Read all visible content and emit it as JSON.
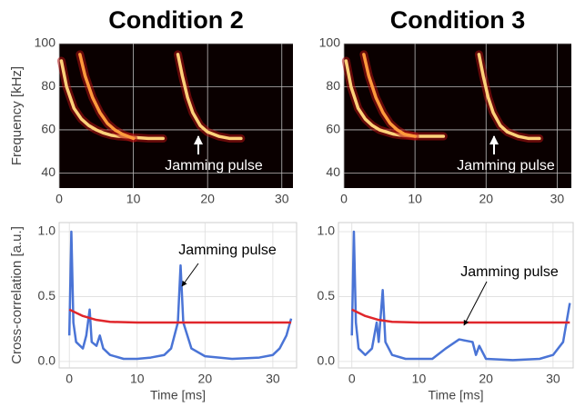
{
  "chart_data": [
    {
      "type": "spectrogram",
      "title": "Condition 2",
      "ylabel": "Frequency [kHz]",
      "annotation": "Jamming pulse",
      "xlim": [
        0,
        31.5
      ],
      "ylim": [
        33,
        100
      ],
      "xticks": [
        0,
        10,
        20,
        30
      ],
      "yticks": [
        40,
        60,
        80,
        100
      ],
      "grid": true,
      "series": [
        {
          "color": "#ffd27a",
          "x": [
            0.3,
            1,
            2,
            3,
            4,
            5,
            6,
            7,
            8,
            10,
            12,
            14
          ],
          "values": [
            92,
            80,
            70,
            65,
            62,
            60,
            58.5,
            57.5,
            57,
            56.5,
            56,
            56
          ]
        },
        {
          "color": "#ff9a3c",
          "x": [
            2.8,
            3.5,
            4.5,
            5.5,
            6.5,
            7.5,
            8.5,
            10
          ],
          "values": [
            95,
            85,
            75,
            68,
            63,
            60,
            58,
            56
          ]
        },
        {
          "color": "#ffd27a",
          "x": [
            16,
            16.6,
            17.3,
            18,
            19,
            20,
            21.5,
            23,
            24.5
          ],
          "values": [
            95,
            85,
            75,
            68,
            62,
            59,
            57,
            56,
            56
          ]
        }
      ]
    },
    {
      "type": "spectrogram",
      "title": "Condition 3",
      "annotation": "Jamming pulse",
      "xlim": [
        0,
        32
      ],
      "ylim": [
        33,
        100
      ],
      "xticks": [
        0,
        10,
        20,
        30
      ],
      "yticks": [
        40,
        60,
        80,
        100
      ],
      "grid": true,
      "series": [
        {
          "color": "#ffd27a",
          "x": [
            0.3,
            1,
            2,
            3,
            4,
            5,
            6,
            7,
            8,
            10,
            12,
            14
          ],
          "values": [
            92,
            80,
            70,
            65,
            62,
            60,
            59,
            58,
            57.5,
            57,
            57,
            57
          ]
        },
        {
          "color": "#ff9a3c",
          "x": [
            2.8,
            3.5,
            4.5,
            5.5,
            6.5,
            7.5,
            8.5,
            10
          ],
          "values": [
            95,
            85,
            75,
            68,
            63,
            60,
            58,
            57
          ]
        },
        {
          "color": "#ffd27a",
          "x": [
            19,
            19.6,
            20.3,
            21,
            22,
            23,
            24.5,
            26,
            27.5
          ],
          "values": [
            95,
            85,
            75,
            68,
            62,
            59,
            57,
            56,
            56
          ]
        }
      ]
    },
    {
      "type": "line",
      "ylabel": "Cross-correlation [a.u.]",
      "xlabel": "Time [ms]",
      "annotation": "Jamming pulse",
      "xlim": [
        -1.5,
        33.5
      ],
      "ylim": [
        -0.05,
        1.07
      ],
      "xticks": [
        0,
        10,
        20,
        30
      ],
      "yticks": [
        {
          "value": 0,
          "label": "0.0"
        },
        {
          "value": 0.5,
          "label": "0.5"
        },
        {
          "value": 1,
          "label": "1.0"
        }
      ],
      "grid": true,
      "series": [
        {
          "color": "#4a74d6",
          "x": [
            0,
            0.3,
            0.6,
            1,
            2,
            2.5,
            3,
            3.3,
            4,
            4.5,
            5,
            6,
            8,
            10,
            12,
            14,
            15,
            16,
            16.4,
            16.8,
            18,
            20,
            24,
            28,
            30,
            31,
            32,
            32.7
          ],
          "values": [
            0.2,
            1.0,
            0.3,
            0.15,
            0.1,
            0.2,
            0.4,
            0.15,
            0.12,
            0.2,
            0.1,
            0.05,
            0.02,
            0.02,
            0.03,
            0.05,
            0.1,
            0.3,
            0.74,
            0.3,
            0.1,
            0.04,
            0.02,
            0.03,
            0.05,
            0.1,
            0.2,
            0.33
          ]
        },
        {
          "color": "#e0262b",
          "x": [
            0,
            2,
            4,
            6,
            10,
            32.7
          ],
          "values": [
            0.4,
            0.35,
            0.32,
            0.305,
            0.3,
            0.3
          ]
        }
      ]
    },
    {
      "type": "line",
      "xlabel": "Time [ms]",
      "annotation": "Jamming pulse",
      "xlim": [
        -2,
        33
      ],
      "ylim": [
        -0.05,
        1.07
      ],
      "xticks": [
        0,
        10,
        20,
        30
      ],
      "yticks": [
        {
          "value": 0,
          "label": "0.0"
        },
        {
          "value": 0.5,
          "label": "0.5"
        },
        {
          "value": 1,
          "label": "1.0"
        }
      ],
      "grid": true,
      "series": [
        {
          "color": "#4a74d6",
          "x": [
            0,
            0.3,
            0.6,
            1,
            2,
            3,
            3.7,
            4,
            4.6,
            5,
            6,
            8,
            12,
            14,
            16,
            18,
            18.5,
            19,
            20,
            24,
            28,
            30,
            31.5,
            32.5
          ],
          "values": [
            0.2,
            1.0,
            0.3,
            0.1,
            0.05,
            0.1,
            0.3,
            0.15,
            0.55,
            0.15,
            0.05,
            0.02,
            0.02,
            0.1,
            0.17,
            0.15,
            0.05,
            0.12,
            0.02,
            0.01,
            0.02,
            0.05,
            0.15,
            0.45
          ]
        },
        {
          "color": "#e0262b",
          "x": [
            0,
            2,
            4,
            6,
            10,
            32.5
          ],
          "values": [
            0.4,
            0.35,
            0.32,
            0.305,
            0.3,
            0.3
          ]
        }
      ]
    }
  ]
}
